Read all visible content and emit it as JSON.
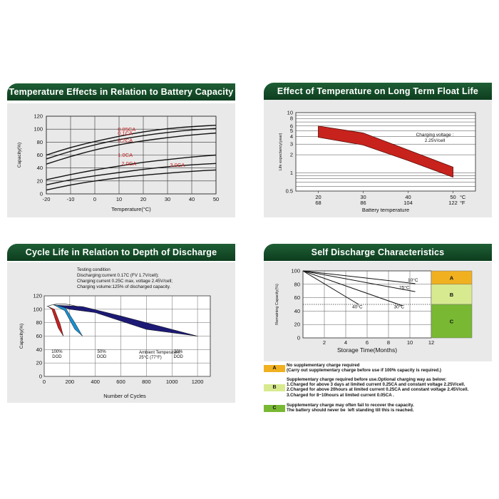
{
  "colors": {
    "header": "#134a27",
    "panel": "#e9e9e9",
    "float_band": "#c8221c",
    "dod100": "#c8201e",
    "dod50": "#1a8fd0",
    "dod30": "#1c1a74",
    "zoneA": "#f0b020",
    "zoneB": "#d8ea90",
    "zoneC": "#79b832"
  },
  "panels": {
    "p1": {
      "title": "Temperature Effects in Relation to Battery Capacity"
    },
    "p2": {
      "title": "Effect of Temperature on Long Term Float Life"
    },
    "p3": {
      "title": "Cycle Life in Relation to Depth of Discharge"
    },
    "p4": {
      "title": "Self Discharge Characteristics"
    }
  },
  "chart_data": [
    {
      "type": "line",
      "title": "Temperature Effects in Relation to Battery Capacity",
      "xlabel": "Temperature(°C)",
      "ylabel": "Capacity(%)",
      "xlim": [
        -20,
        50
      ],
      "ylim": [
        0,
        120
      ],
      "xticks": [
        "-20",
        "-10",
        "0",
        "10",
        "20",
        "30",
        "40",
        "50"
      ],
      "yticks": [
        "0",
        "20",
        "40",
        "60",
        "80",
        "100",
        "120"
      ],
      "grid": true,
      "series": [
        {
          "name": "0.05CA",
          "x": [
            -20,
            -10,
            0,
            10,
            20,
            30,
            40,
            50
          ],
          "values": [
            60,
            72,
            81,
            89,
            96,
            101,
            104,
            106
          ]
        },
        {
          "name": "0.1CA",
          "x": [
            -20,
            -10,
            0,
            10,
            20,
            30,
            40,
            50
          ],
          "values": [
            54,
            66,
            76,
            84,
            90,
            95,
            99,
            101
          ]
        },
        {
          "name": "0.2CA",
          "x": [
            -20,
            -10,
            0,
            10,
            20,
            30,
            40,
            50
          ],
          "values": [
            46,
            58,
            68,
            76,
            82,
            87,
            91,
            94
          ]
        },
        {
          "name": "1.0CA",
          "x": [
            -20,
            -10,
            0,
            10,
            20,
            30,
            40,
            50
          ],
          "values": [
            22,
            30,
            37,
            43,
            49,
            53,
            57,
            60
          ]
        },
        {
          "name": "2.0CA",
          "x": [
            -20,
            -10,
            0,
            10,
            20,
            30,
            40,
            50
          ],
          "values": [
            14,
            22,
            28,
            33,
            38,
            42,
            45,
            47
          ]
        },
        {
          "name": "3.0CA",
          "x": [
            -20,
            -10,
            0,
            10,
            20,
            30,
            40,
            50
          ],
          "values": [
            6,
            14,
            20,
            25,
            29,
            32,
            35,
            37
          ]
        }
      ]
    },
    {
      "type": "area",
      "title": "Effect of Temperature on Long Term Float Life",
      "xlabel": "Battery temperature",
      "ylabel": "Life expectancy(year)",
      "xlim": [
        15,
        55
      ],
      "ylim": [
        0.5,
        10
      ],
      "log_y": true,
      "xticks": [
        {
          "c": "20",
          "f": "68"
        },
        {
          "c": "30",
          "f": "86"
        },
        {
          "c": "40",
          "f": "104"
        },
        {
          "c": "50",
          "f": "122"
        }
      ],
      "unit_c": "°C",
      "unit_f": "°F",
      "yticks": [
        "10",
        "8",
        "6",
        "5",
        "4",
        "3",
        "2",
        "1",
        "0.5"
      ],
      "annotation": "Charging voltage :\n2.25V/cell",
      "band": {
        "x": [
          20,
          30,
          40,
          50
        ],
        "upper": [
          6.0,
          4.6,
          2.4,
          1.25
        ],
        "lower": [
          3.9,
          2.9,
          1.6,
          0.85
        ]
      }
    },
    {
      "type": "area",
      "title": "Cycle Life in Relation to Depth of Discharge",
      "xlabel": "Number of Cycles",
      "ylabel": "Capacity(%)",
      "xlim": [
        0,
        1300
      ],
      "ylim": [
        0,
        120
      ],
      "xticks": [
        "0",
        "200",
        "400",
        "600",
        "800",
        "1000",
        "1200"
      ],
      "yticks": [
        "0",
        "20",
        "40",
        "60",
        "80",
        "100",
        "120"
      ],
      "condition": [
        "Testing condition",
        "Discharging:current 0.17C (FV 1.7V/cell);",
        "Charging:current 0.25C max, voltage 2.45V/cell;",
        "Charging volume:125% of discharged capacity."
      ],
      "ambient": "Ambient Temperature:\n25°C (77°F)",
      "series": [
        {
          "name": "100% DOD",
          "label": "100%\nDOD"
        },
        {
          "name": "50% DOD",
          "label": "50%\nDOD"
        },
        {
          "name": "30% DOD",
          "label": "30%\nDOD"
        }
      ]
    },
    {
      "type": "line",
      "title": "Self Discharge Characteristics",
      "xlabel": "Storage Time(Months)",
      "ylabel": "Remaining Capacity(%)",
      "xlim": [
        0,
        12
      ],
      "ylim": [
        0,
        100
      ],
      "xticks": [
        "2",
        "4",
        "6",
        "8",
        "10",
        "12"
      ],
      "yticks": [
        "0",
        "20",
        "40",
        "60",
        "80",
        "100"
      ],
      "zones": [
        "A",
        "B",
        "C"
      ],
      "series": [
        {
          "name": "10°C",
          "x": [
            0,
            10.5
          ],
          "values": [
            100,
            81
          ]
        },
        {
          "name": "25°C",
          "x": [
            0,
            10.5
          ],
          "values": [
            100,
            69
          ]
        },
        {
          "name": "40°C",
          "x": [
            0,
            5.2
          ],
          "values": [
            100,
            50
          ]
        },
        {
          "name": "30°C",
          "x": [
            0,
            9.3
          ],
          "values": [
            100,
            48
          ]
        }
      ],
      "legend_rows": [
        {
          "tag": "A",
          "text": "No supplementary charge required\n(Carry out supplementary charge before use if 100% capacity is required.)"
        },
        {
          "tag": "B",
          "text": "Supplementary charge required before use.Optional charging way as below:\n1.Charged for above 3 days at limited current 0.25CA and constant voltage 2.25V/cell.\n2.Charged for above 20hours at limited current 0.25CA and constant voltage 2.45V/cell.\n3.Charged for 8~10hours at limited current 0.05CA ."
        },
        {
          "tag": "C",
          "text": "Supplementary charge may often fail to recover the capacity.\nThe battery should never be  left standing till this is reached."
        }
      ]
    }
  ]
}
